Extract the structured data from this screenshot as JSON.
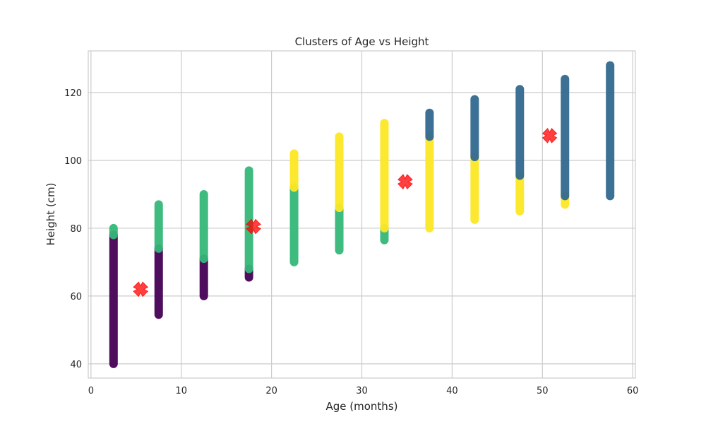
{
  "chart_data": {
    "type": "scatter",
    "title": "Clusters of Age vs Height",
    "xlabel": "Age (months)",
    "ylabel": "Height (cm)",
    "xlim": [
      -0.3,
      60.3
    ],
    "ylim": [
      35.8,
      132.3
    ],
    "x_ticks": [
      0,
      10,
      20,
      30,
      40,
      50,
      60
    ],
    "y_ticks": [
      40,
      60,
      80,
      100,
      120
    ],
    "grid": true,
    "colors": {
      "cluster_0": "#440154",
      "cluster_1": "#31688e",
      "cluster_2": "#35b779",
      "cluster_3": "#fde725",
      "centroid": "#ff0000",
      "grid": "#cccccc",
      "axes_edge": "#cccccc"
    },
    "series": [
      {
        "cluster": 0,
        "color": "#440154",
        "segments": [
          {
            "x": 2.5,
            "y_min": 40.0,
            "y_max": 78.0
          },
          {
            "x": 7.5,
            "y_min": 54.5,
            "y_max": 74.0
          },
          {
            "x": 12.5,
            "y_min": 60.0,
            "y_max": 71.0
          },
          {
            "x": 17.5,
            "y_min": 65.5,
            "y_max": 68.0
          }
        ]
      },
      {
        "cluster": 2,
        "color": "#35b779",
        "segments": [
          {
            "x": 2.5,
            "y_min": 78.0,
            "y_max": 80.0
          },
          {
            "x": 7.5,
            "y_min": 74.0,
            "y_max": 87.0
          },
          {
            "x": 12.5,
            "y_min": 71.0,
            "y_max": 90.0
          },
          {
            "x": 17.5,
            "y_min": 68.0,
            "y_max": 97.0
          },
          {
            "x": 22.5,
            "y_min": 70.0,
            "y_max": 92.0
          },
          {
            "x": 27.5,
            "y_min": 73.5,
            "y_max": 86.0
          },
          {
            "x": 32.5,
            "y_min": 76.5,
            "y_max": 80.0
          }
        ]
      },
      {
        "cluster": 3,
        "color": "#fde725",
        "segments": [
          {
            "x": 22.5,
            "y_min": 92.0,
            "y_max": 102.0
          },
          {
            "x": 27.5,
            "y_min": 86.0,
            "y_max": 107.0
          },
          {
            "x": 32.5,
            "y_min": 80.0,
            "y_max": 111.0
          },
          {
            "x": 37.5,
            "y_min": 80.0,
            "y_max": 107.0
          },
          {
            "x": 42.5,
            "y_min": 82.5,
            "y_max": 101.0
          },
          {
            "x": 47.5,
            "y_min": 85.0,
            "y_max": 95.5
          },
          {
            "x": 52.5,
            "y_min": 87.0,
            "y_max": 89.5
          }
        ]
      },
      {
        "cluster": 1,
        "color": "#31688e",
        "segments": [
          {
            "x": 37.5,
            "y_min": 107.0,
            "y_max": 114.0
          },
          {
            "x": 42.5,
            "y_min": 101.0,
            "y_max": 118.0
          },
          {
            "x": 47.5,
            "y_min": 95.5,
            "y_max": 121.0
          },
          {
            "x": 52.5,
            "y_min": 89.5,
            "y_max": 124.0
          },
          {
            "x": 57.5,
            "y_min": 89.5,
            "y_max": 128.0
          }
        ]
      }
    ],
    "centroids": [
      {
        "cluster": 0,
        "x": 5.5,
        "y": 62.0
      },
      {
        "cluster": 2,
        "x": 18.0,
        "y": 80.5
      },
      {
        "cluster": 3,
        "x": 34.8,
        "y": 93.7
      },
      {
        "cluster": 1,
        "x": 50.8,
        "y": 107.3
      }
    ]
  }
}
